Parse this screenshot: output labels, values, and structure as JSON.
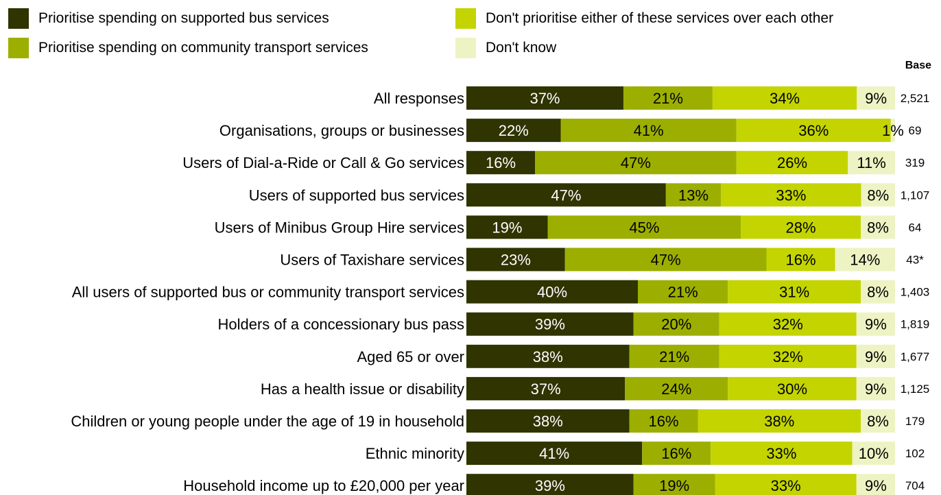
{
  "legend": {
    "items": [
      {
        "label": "Prioritise spending on supported bus services",
        "color": "#2f3400"
      },
      {
        "label": "Prioritise spending on community transport services",
        "color": "#9caf00"
      },
      {
        "label": "Don't prioritise either of these services over each other",
        "color": "#c3d400"
      },
      {
        "label": "Don't know",
        "color": "#eef3c3"
      }
    ]
  },
  "chart_data": {
    "type": "bar",
    "orientation": "horizontal",
    "stacked": true,
    "base_header": "Base",
    "categories": [
      "All responses",
      "Organisations, groups or businesses",
      "Users of Dial-a-Ride or Call & Go services",
      "Users of supported bus services",
      "Users of Minibus Group Hire services",
      "Users of Taxishare services",
      "All users of supported bus or community transport services",
      "Holders of a concessionary bus pass",
      "Aged 65 or over",
      "Has a health issue or disability",
      "Children or young people under the age of 19 in household",
      "Ethnic minority",
      "Household income up to £20,000 per year"
    ],
    "series": [
      {
        "name": "Prioritise spending on supported bus services",
        "color": "#2f3400",
        "text_color": "#ffffff",
        "values": [
          37,
          22,
          16,
          47,
          19,
          23,
          40,
          39,
          38,
          37,
          38,
          41,
          39
        ]
      },
      {
        "name": "Prioritise spending on community transport services",
        "color": "#9caf00",
        "text_color": "#000000",
        "values": [
          21,
          41,
          47,
          13,
          45,
          47,
          21,
          20,
          21,
          24,
          16,
          16,
          19
        ]
      },
      {
        "name": "Don't prioritise either of these services over each other",
        "color": "#c3d400",
        "text_color": "#000000",
        "values": [
          34,
          36,
          26,
          33,
          28,
          16,
          31,
          32,
          32,
          30,
          38,
          33,
          33
        ]
      },
      {
        "name": "Don't know",
        "color": "#eef3c3",
        "text_color": "#000000",
        "values": [
          9,
          1,
          11,
          8,
          8,
          14,
          8,
          9,
          9,
          9,
          8,
          10,
          9
        ]
      }
    ],
    "bases": [
      "2,521",
      "69",
      "319",
      "1,107",
      "64",
      "43*",
      "1,403",
      "1,819",
      "1,677",
      "1,125",
      "179",
      "102",
      "704"
    ],
    "xlim": [
      0,
      100
    ],
    "grid": false,
    "legend_position": "top"
  }
}
